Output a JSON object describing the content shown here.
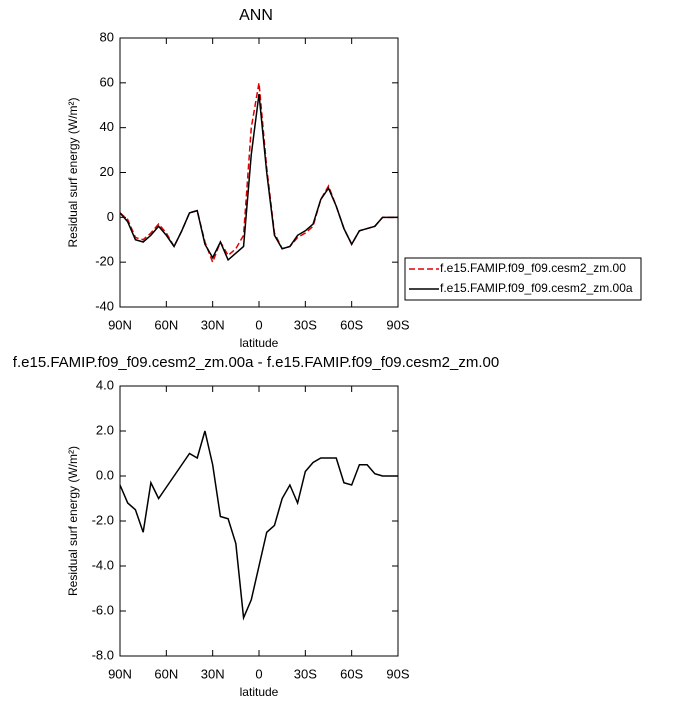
{
  "chart_data": [
    {
      "type": "line",
      "title": "ANN",
      "xlabel": "latitude",
      "ylabel": "Residual surf energy (W/m²)",
      "x": [
        90,
        85,
        80,
        75,
        70,
        65,
        60,
        55,
        50,
        45,
        40,
        35,
        30,
        25,
        20,
        15,
        10,
        5,
        0,
        -5,
        -10,
        -15,
        -20,
        -25,
        -30,
        -35,
        -40,
        -45,
        -50,
        -55,
        -60,
        -65,
        -70,
        -75,
        -80,
        -85,
        -90
      ],
      "xlim": [
        90,
        -90
      ],
      "xticks": [
        {
          "value": 90,
          "label": "90N"
        },
        {
          "value": 60,
          "label": "60N"
        },
        {
          "value": 30,
          "label": "30N"
        },
        0,
        {
          "value": -30,
          "label": "30S"
        },
        {
          "value": -60,
          "label": "60S"
        },
        {
          "value": -90,
          "label": "90S"
        }
      ],
      "ylim": [
        -40,
        80
      ],
      "yticks": [
        -40,
        -20,
        0,
        20,
        40,
        60,
        80
      ],
      "legend": "right",
      "series": [
        {
          "name": "f.e15.FAMIP.f09_f09.cesm2_zm.00",
          "color": "#e00000",
          "line_style": "dashed",
          "values": [
            2,
            -1,
            -9,
            -10,
            -7,
            -3,
            -7,
            -13,
            -6,
            2,
            3,
            -11,
            -20,
            -11,
            -17,
            -14,
            -8,
            40,
            60,
            22,
            -7,
            -14,
            -13,
            -9,
            -7,
            -4,
            8,
            14,
            5,
            -5,
            -12,
            -6,
            -5,
            -4,
            0,
            0,
            0
          ]
        },
        {
          "name": "f.e15.FAMIP.f09_f09.cesm2_zm.00a",
          "color": "#000000",
          "line_style": "solid",
          "values": [
            2,
            -2,
            -10,
            -11,
            -8,
            -4,
            -8,
            -13,
            -6,
            2,
            3,
            -12,
            -18,
            -11,
            -19,
            -16,
            -13,
            28,
            55,
            20,
            -8,
            -14,
            -13,
            -8,
            -6,
            -3,
            8,
            13,
            5,
            -5,
            -12,
            -6,
            -5,
            -4,
            0,
            0,
            0
          ]
        }
      ]
    },
    {
      "type": "line",
      "title": "f.e15.FAMIP.f09_f09.cesm2_zm.00a - f.e15.FAMIP.f09_f09.cesm2_zm.00",
      "xlabel": "latitude",
      "ylabel": "Residual surf energy (W/m²)",
      "x": [
        90,
        85,
        80,
        75,
        70,
        65,
        60,
        55,
        50,
        45,
        40,
        35,
        30,
        25,
        20,
        15,
        10,
        5,
        0,
        -5,
        -10,
        -15,
        -20,
        -25,
        -30,
        -35,
        -40,
        -45,
        -50,
        -55,
        -60,
        -65,
        -70,
        -75,
        -80,
        -85,
        -90
      ],
      "xlim": [
        90,
        -90
      ],
      "xticks": [
        {
          "value": 90,
          "label": "90N"
        },
        {
          "value": 60,
          "label": "60N"
        },
        {
          "value": 30,
          "label": "30N"
        },
        0,
        {
          "value": -30,
          "label": "30S"
        },
        {
          "value": -60,
          "label": "60S"
        },
        {
          "value": -90,
          "label": "90S"
        }
      ],
      "ylim": [
        -8,
        4
      ],
      "yticks": [
        {
          "value": 4,
          "label": "4.0"
        },
        {
          "value": 2,
          "label": "2.0"
        },
        {
          "value": 0,
          "label": "0.0"
        },
        {
          "value": -2,
          "label": "-2.0"
        },
        {
          "value": -4,
          "label": "-4.0"
        },
        {
          "value": -6,
          "label": "-6.0"
        },
        {
          "value": -8,
          "label": "-8.0"
        }
      ],
      "series": [
        {
          "color": "#000000",
          "line_style": "solid",
          "values": [
            -0.4,
            -1.2,
            -1.5,
            -2.5,
            -0.3,
            -1.0,
            -0.5,
            0.0,
            0.5,
            1.0,
            0.8,
            2.0,
            0.5,
            -1.8,
            -1.9,
            -3.0,
            -6.3,
            -5.5,
            -4.0,
            -2.5,
            -2.2,
            -1.0,
            -0.4,
            -1.2,
            0.2,
            0.6,
            0.8,
            0.8,
            0.8,
            -0.3,
            -0.4,
            0.5,
            0.5,
            0.1,
            0.0,
            0.0,
            0.0
          ]
        }
      ]
    }
  ]
}
